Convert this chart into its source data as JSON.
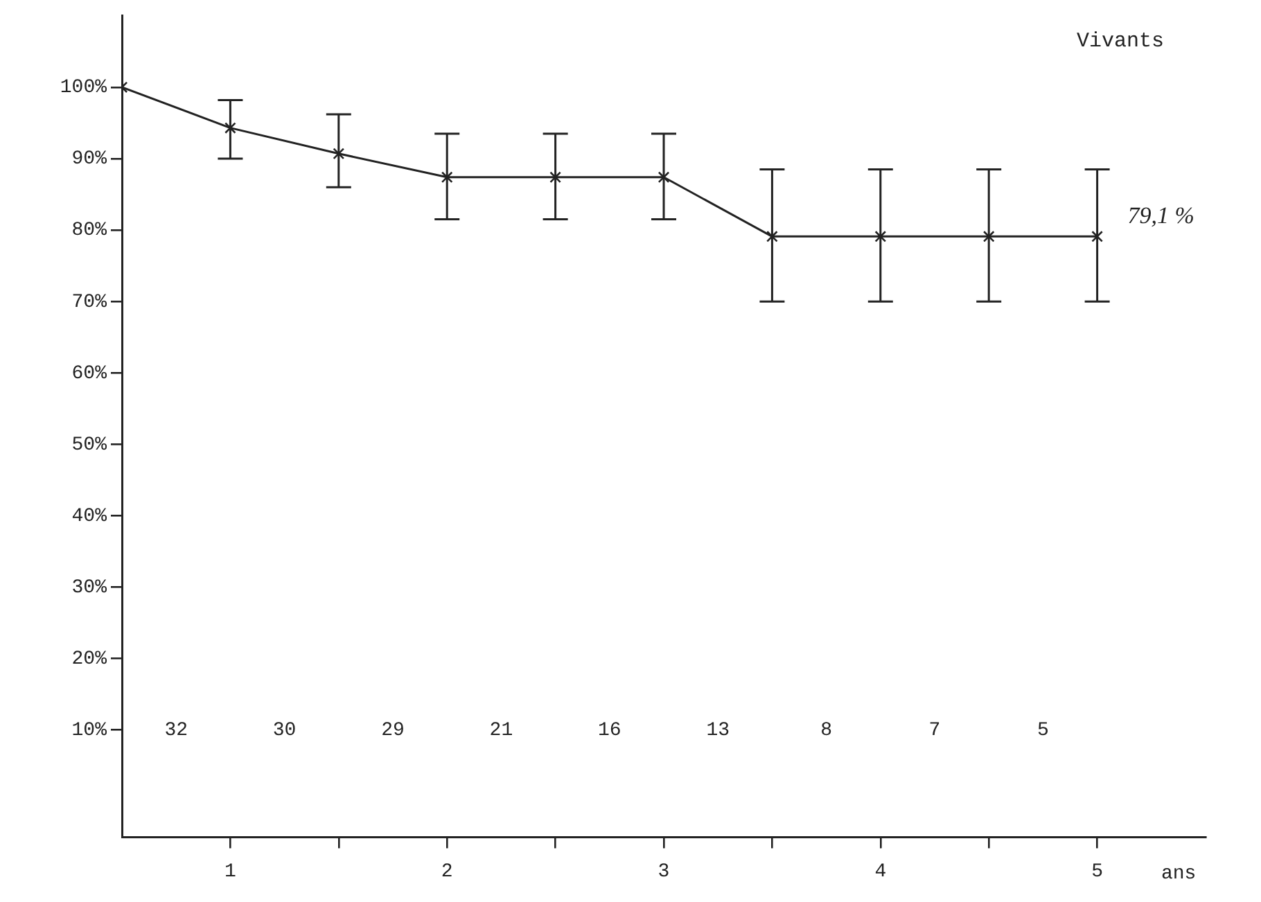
{
  "chart_data": {
    "type": "line",
    "xlabel": "ans",
    "x": [
      0.5,
      1,
      1.5,
      2,
      2.5,
      3,
      3.5,
      4,
      4.5,
      5
    ],
    "series": [
      {
        "color": "#222222",
        "values": [
          100,
          94.3,
          90.7,
          87.4,
          87.4,
          87.4,
          79.1,
          79.1,
          79.1,
          79.1
        ],
        "errors": [
          null,
          [
            90,
            98.2
          ],
          [
            86,
            96.2
          ],
          [
            81.5,
            93.5
          ],
          [
            81.5,
            93.5
          ],
          [
            81.5,
            93.5
          ],
          [
            70,
            88.5
          ],
          [
            70,
            88.5
          ],
          [
            70,
            88.5
          ],
          [
            70,
            88.5
          ]
        ]
      }
    ],
    "xlim": [
      0.5,
      5.5
    ],
    "xticks": [
      1,
      {
        "value": 1.5,
        "label": null
      },
      2,
      {
        "value": 2.5,
        "label": null
      },
      3,
      {
        "value": 3.5,
        "label": null
      },
      4,
      {
        "value": 4.5,
        "label": null
      },
      5
    ],
    "ylim": [
      -5,
      110
    ],
    "yticks": [
      {
        "value": 10,
        "label": "10%"
      },
      {
        "value": 20,
        "label": "20%"
      },
      {
        "value": 30,
        "label": "30%"
      },
      {
        "value": 40,
        "label": "40%"
      },
      {
        "value": 50,
        "label": "50%"
      },
      {
        "value": 60,
        "label": "60%"
      },
      {
        "value": 70,
        "label": "70%"
      },
      {
        "value": 80,
        "label": "80%"
      },
      {
        "value": 90,
        "label": "90%"
      },
      {
        "value": 100,
        "label": "100%"
      }
    ],
    "annotations": [
      "Vivants",
      {
        "text": "79,1 %",
        "x": 5,
        "y": 79.1
      },
      "32",
      "30",
      "29",
      "21",
      "16",
      "13",
      "8",
      "7",
      "5"
    ],
    "grid": false,
    "legend": false,
    "marker": "cross",
    "line_style": "solid"
  }
}
